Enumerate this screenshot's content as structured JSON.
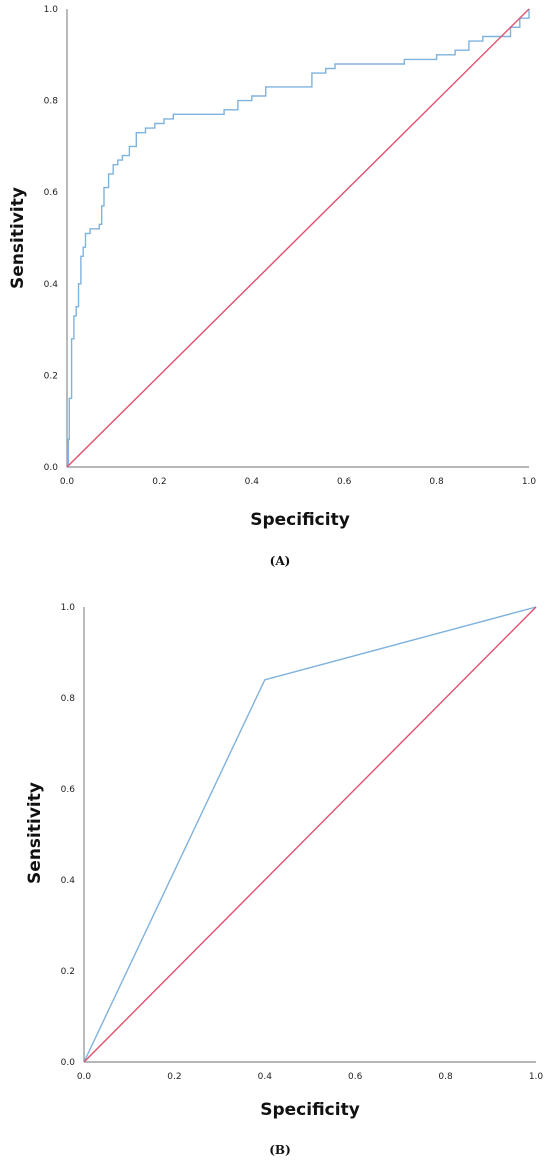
{
  "colors": {
    "roc": "#7fb2dd",
    "reference": "#e2506f",
    "axis": "#8c8c8c"
  },
  "chart_data": [
    {
      "type": "line",
      "panel_label": "(A)",
      "xlabel": "Specificity",
      "ylabel": "Sensitivity",
      "xlim": [
        0,
        1
      ],
      "ylim": [
        0,
        1
      ],
      "x_ticks": [
        "0.0",
        "0.2",
        "0.4",
        "0.6",
        "0.8",
        "1.0"
      ],
      "y_ticks": [
        "0.0",
        "0.2",
        "0.4",
        "0.6",
        "0.8",
        "1.0"
      ],
      "grid": false,
      "series": [
        {
          "role": "roc",
          "step": true,
          "points": [
            [
              0,
              0
            ],
            [
              0.003,
              0.06
            ],
            [
              0.005,
              0.15
            ],
            [
              0.01,
              0.28
            ],
            [
              0.015,
              0.33
            ],
            [
              0.02,
              0.35
            ],
            [
              0.025,
              0.4
            ],
            [
              0.03,
              0.46
            ],
            [
              0.035,
              0.48
            ],
            [
              0.04,
              0.51
            ],
            [
              0.05,
              0.52
            ],
            [
              0.06,
              0.52
            ],
            [
              0.07,
              0.53
            ],
            [
              0.075,
              0.57
            ],
            [
              0.08,
              0.61
            ],
            [
              0.09,
              0.64
            ],
            [
              0.1,
              0.66
            ],
            [
              0.11,
              0.67
            ],
            [
              0.12,
              0.68
            ],
            [
              0.135,
              0.7
            ],
            [
              0.15,
              0.73
            ],
            [
              0.17,
              0.74
            ],
            [
              0.19,
              0.75
            ],
            [
              0.21,
              0.76
            ],
            [
              0.23,
              0.77
            ],
            [
              0.3,
              0.77
            ],
            [
              0.34,
              0.78
            ],
            [
              0.37,
              0.8
            ],
            [
              0.4,
              0.81
            ],
            [
              0.42,
              0.81
            ],
            [
              0.43,
              0.83
            ],
            [
              0.51,
              0.83
            ],
            [
              0.53,
              0.86
            ],
            [
              0.56,
              0.87
            ],
            [
              0.58,
              0.88
            ],
            [
              0.7,
              0.88
            ],
            [
              0.73,
              0.89
            ],
            [
              0.8,
              0.9
            ],
            [
              0.84,
              0.91
            ],
            [
              0.87,
              0.93
            ],
            [
              0.9,
              0.94
            ],
            [
              0.96,
              0.96
            ],
            [
              0.98,
              0.98
            ],
            [
              1,
              0.99
            ],
            [
              1,
              1
            ]
          ]
        },
        {
          "role": "reference",
          "step": false,
          "points": [
            [
              0,
              0
            ],
            [
              1,
              1
            ]
          ]
        }
      ]
    },
    {
      "type": "line",
      "panel_label": "(B)",
      "xlabel": "Specificity",
      "ylabel": "Sensitivity",
      "xlim": [
        0,
        1
      ],
      "ylim": [
        0,
        1
      ],
      "x_ticks": [
        "0.0",
        "0.2",
        "0.4",
        "0.6",
        "0.8",
        "1.0"
      ],
      "y_ticks": [
        "0.0",
        "0.2",
        "0.4",
        "0.6",
        "0.8",
        "1.0"
      ],
      "grid": false,
      "series": [
        {
          "role": "roc",
          "step": false,
          "points": [
            [
              0,
              0
            ],
            [
              0.4,
              0.84
            ],
            [
              1,
              1
            ]
          ]
        },
        {
          "role": "reference",
          "step": false,
          "points": [
            [
              0,
              0
            ],
            [
              1,
              1
            ]
          ]
        }
      ]
    }
  ]
}
